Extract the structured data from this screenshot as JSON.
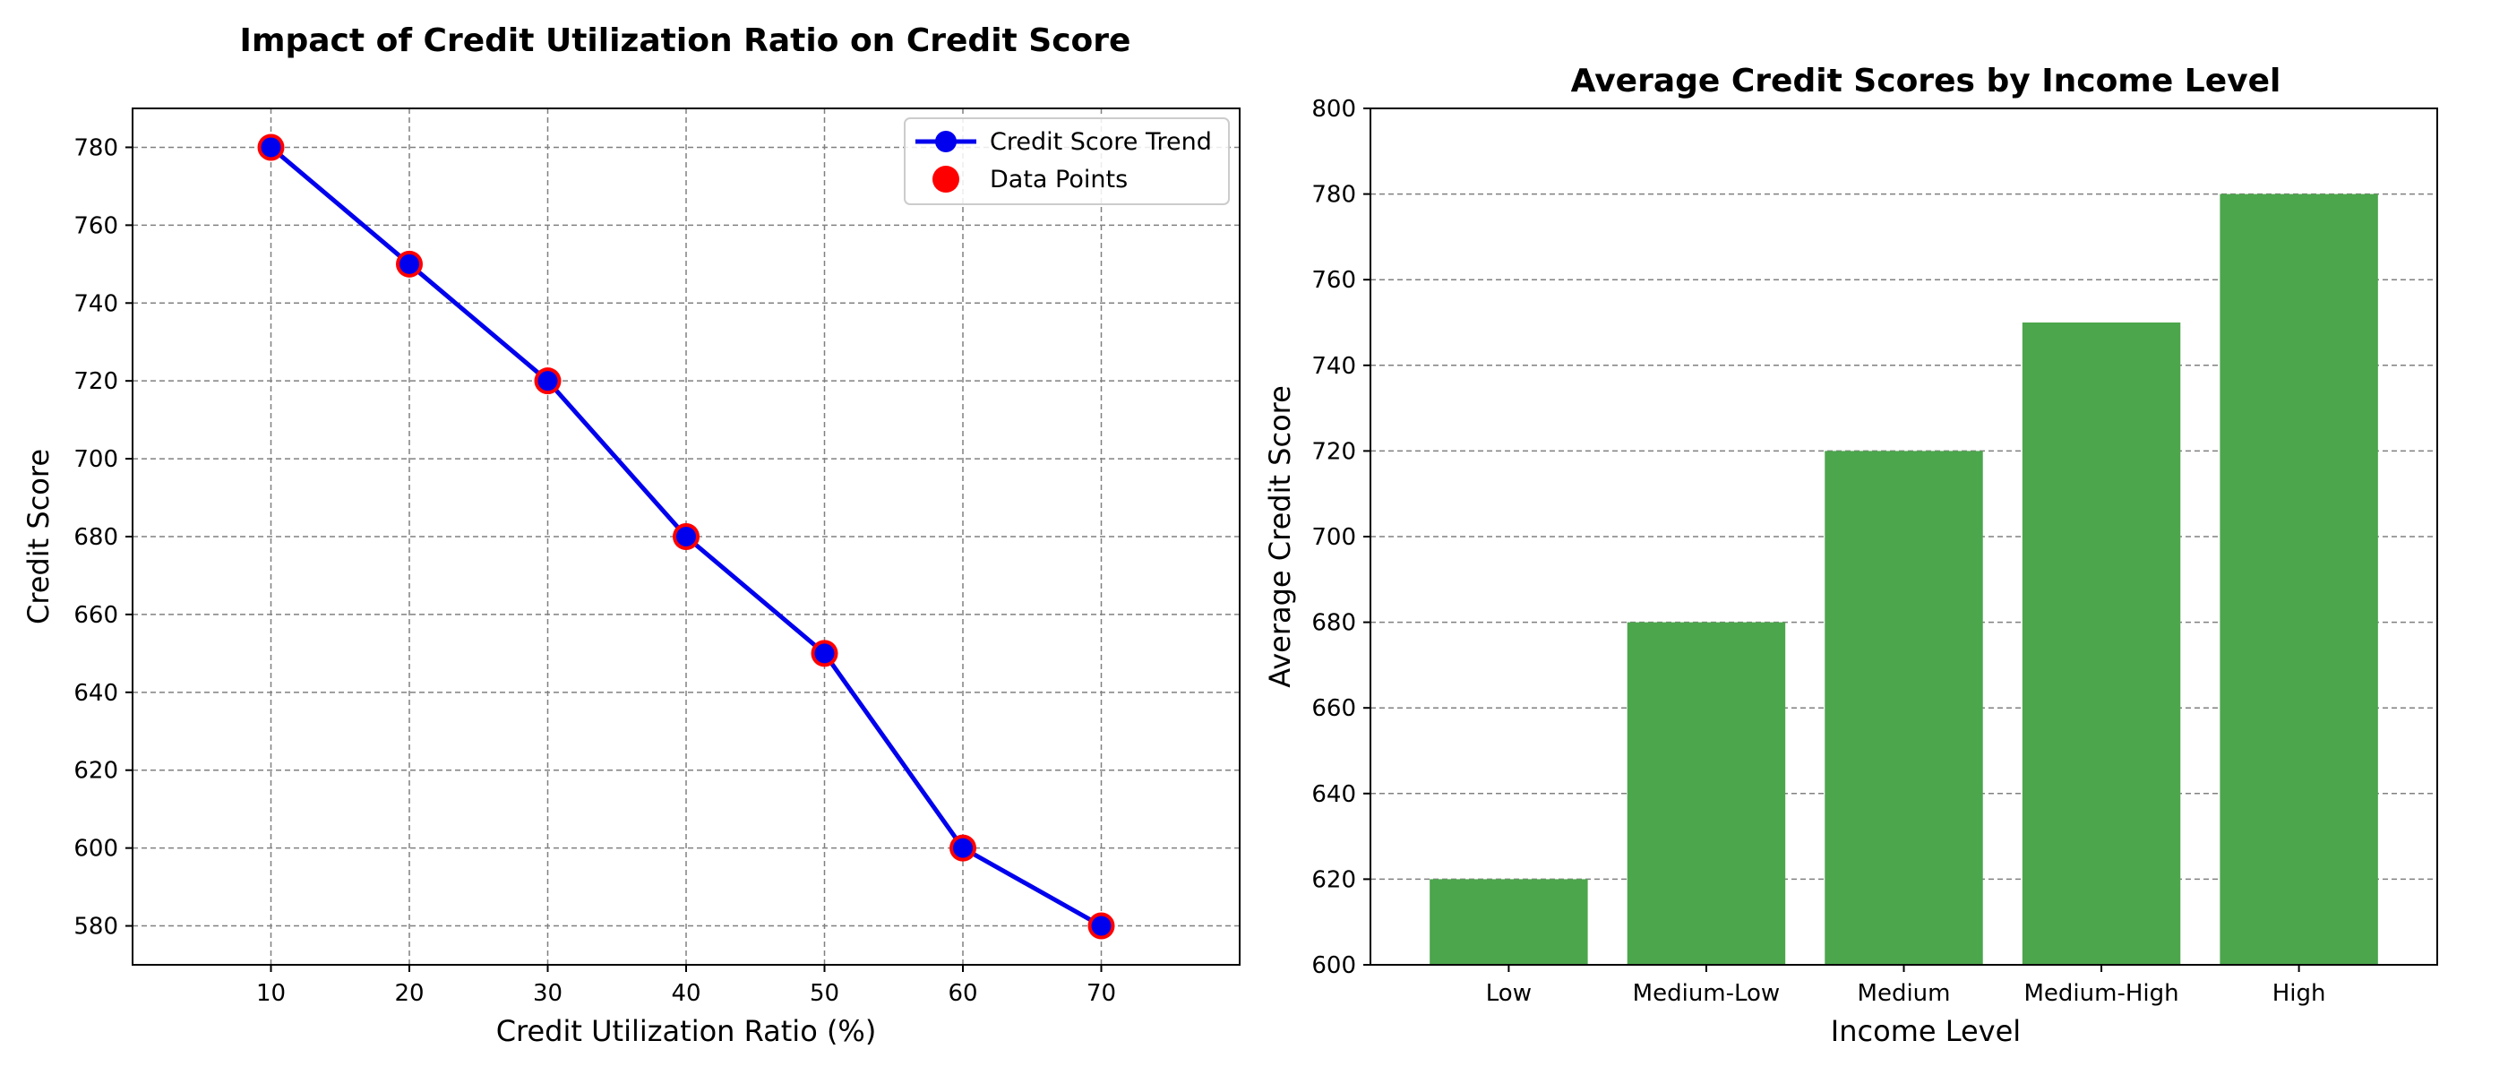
{
  "chart_data": [
    {
      "type": "line",
      "title": "Impact of Credit Utilization Ratio on Credit Score",
      "xlabel": "Credit Utilization Ratio (%)",
      "ylabel": "Credit Score",
      "x": [
        10,
        20,
        30,
        40,
        50,
        60,
        70
      ],
      "xlim": [
        0,
        80
      ],
      "ylim": [
        570,
        790
      ],
      "xticks": [
        10,
        20,
        30,
        40,
        50,
        60,
        70
      ],
      "yticks": [
        580,
        600,
        620,
        640,
        660,
        680,
        700,
        720,
        740,
        760,
        780
      ],
      "grid": true,
      "legend_position": "top-right",
      "series": [
        {
          "name": "Credit Score Trend",
          "values": [
            780,
            750,
            720,
            680,
            650,
            600,
            580
          ],
          "color": "#0000ee",
          "marker_color": "#0000ee"
        },
        {
          "name": "Data Points",
          "values": [
            780,
            750,
            720,
            680,
            650,
            600,
            580
          ],
          "color": "#ff0000"
        }
      ]
    },
    {
      "type": "bar",
      "title": "Average Credit Scores by Income Level",
      "xlabel": "Income Level",
      "ylabel": "Average Credit Score",
      "categories": [
        "Low",
        "Medium-Low",
        "Medium",
        "Medium-High",
        "High"
      ],
      "values": [
        620,
        680,
        720,
        750,
        780
      ],
      "ylim": [
        600,
        800
      ],
      "yticks": [
        600,
        620,
        640,
        660,
        680,
        700,
        720,
        740,
        760,
        780,
        800
      ],
      "grid": true,
      "bar_color": "#4ca64c"
    }
  ]
}
